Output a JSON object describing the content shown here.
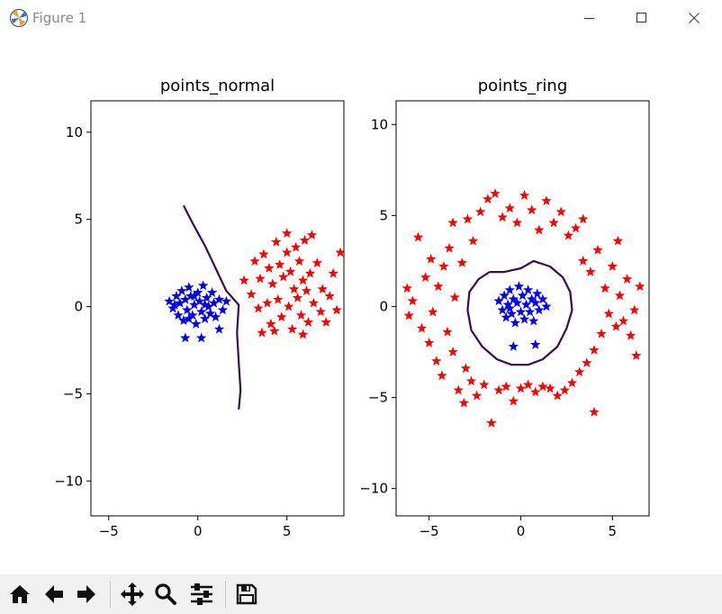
{
  "window": {
    "title": "Figure 1",
    "icons": {
      "app": "matplotlib-logo-icon",
      "minimize": "minimize-icon",
      "maximize": "maximize-icon",
      "close": "close-icon"
    }
  },
  "toolbar": {
    "buttons": [
      {
        "icon": "home-icon"
      },
      {
        "icon": "back-arrow-icon"
      },
      {
        "icon": "forward-arrow-icon"
      },
      {
        "icon": "pan-icon"
      },
      {
        "icon": "zoom-icon"
      },
      {
        "icon": "configure-subplots-icon"
      },
      {
        "icon": "save-icon"
      }
    ]
  },
  "colors": {
    "class_a": "#0000ff",
    "class_b": "#ff0000",
    "boundary": "#3b0a52"
  },
  "chart_data": [
    {
      "type": "scatter",
      "title": "points_normal",
      "xlim": [
        -6,
        8.2
      ],
      "ylim": [
        -12,
        11.8
      ],
      "xticks": [
        -5,
        0,
        5
      ],
      "yticks": [
        -10,
        -5,
        0,
        5,
        10
      ],
      "series": [
        {
          "color": "#0000ff",
          "marker": "star",
          "points": [
            [
              -1.6,
              0.3
            ],
            [
              -1.4,
              -0.1
            ],
            [
              -1.2,
              0.6
            ],
            [
              -1.1,
              -0.5
            ],
            [
              -1.0,
              0.2
            ],
            [
              -0.9,
              0.9
            ],
            [
              -0.8,
              -0.8
            ],
            [
              -0.7,
              0.4
            ],
            [
              -0.6,
              -0.2
            ],
            [
              -0.5,
              1.1
            ],
            [
              -0.4,
              0.6
            ],
            [
              -0.3,
              -0.5
            ],
            [
              -0.2,
              0.1
            ],
            [
              -0.1,
              -1.0
            ],
            [
              0.0,
              0.8
            ],
            [
              0.1,
              0.3
            ],
            [
              0.2,
              -0.3
            ],
            [
              0.3,
              1.2
            ],
            [
              0.4,
              -0.7
            ],
            [
              0.5,
              0.5
            ],
            [
              0.6,
              0.0
            ],
            [
              0.7,
              -0.4
            ],
            [
              0.8,
              0.8
            ],
            [
              0.9,
              0.2
            ],
            [
              1.0,
              -0.6
            ],
            [
              1.2,
              0.4
            ],
            [
              1.4,
              -0.2
            ],
            [
              1.6,
              0.3
            ],
            [
              -0.7,
              -1.8
            ],
            [
              0.2,
              -1.8
            ],
            [
              1.2,
              -1.3
            ],
            [
              -1.3,
              0.1
            ],
            [
              -0.2,
              0.6
            ],
            [
              0.4,
              0.1
            ],
            [
              -0.5,
              -0.7
            ]
          ]
        },
        {
          "color": "#ff0000",
          "marker": "star",
          "points": [
            [
              2.6,
              1.5
            ],
            [
              3.0,
              0.7
            ],
            [
              3.2,
              2.6
            ],
            [
              3.4,
              -0.1
            ],
            [
              3.5,
              1.6
            ],
            [
              3.7,
              3.0
            ],
            [
              3.9,
              0.2
            ],
            [
              4.0,
              2.2
            ],
            [
              4.1,
              -1.0
            ],
            [
              4.2,
              1.3
            ],
            [
              4.4,
              3.7
            ],
            [
              4.5,
              0.4
            ],
            [
              4.6,
              2.4
            ],
            [
              4.7,
              -0.6
            ],
            [
              4.8,
              1.7
            ],
            [
              5.0,
              3.1
            ],
            [
              5.1,
              0.0
            ],
            [
              5.2,
              2.0
            ],
            [
              5.3,
              -1.3
            ],
            [
              5.4,
              1.0
            ],
            [
              5.5,
              3.4
            ],
            [
              5.6,
              0.5
            ],
            [
              5.7,
              2.6
            ],
            [
              5.8,
              -0.5
            ],
            [
              5.9,
              1.5
            ],
            [
              6.0,
              3.8
            ],
            [
              6.1,
              0.9
            ],
            [
              6.2,
              -0.9
            ],
            [
              6.3,
              1.9
            ],
            [
              6.5,
              0.2
            ],
            [
              6.7,
              2.5
            ],
            [
              6.9,
              -0.3
            ],
            [
              7.0,
              1.0
            ],
            [
              7.2,
              -0.9
            ],
            [
              7.4,
              0.6
            ],
            [
              7.6,
              1.9
            ],
            [
              8.0,
              3.1
            ],
            [
              7.8,
              -0.2
            ],
            [
              6.4,
              4.1
            ],
            [
              4.3,
              -1.4
            ],
            [
              3.6,
              -1.5
            ],
            [
              5.0,
              4.2
            ],
            [
              5.9,
              -1.6
            ]
          ]
        }
      ],
      "boundary": [
        [
          -0.8,
          5.8
        ],
        [
          -0.3,
          4.8
        ],
        [
          0.4,
          3.5
        ],
        [
          1.0,
          2.2
        ],
        [
          1.6,
          0.9
        ],
        [
          2.3,
          0.1
        ],
        [
          2.2,
          -1.5
        ],
        [
          2.3,
          -3.2
        ],
        [
          2.4,
          -4.8
        ],
        [
          2.3,
          -5.9
        ]
      ]
    },
    {
      "type": "scatter",
      "title": "points_ring",
      "xlim": [
        -6.8,
        7.0
      ],
      "ylim": [
        -11.5,
        11.3
      ],
      "xticks": [
        -5,
        0,
        5
      ],
      "yticks": [
        -10,
        -5,
        0,
        5,
        10
      ],
      "series": [
        {
          "color": "#0000ff",
          "marker": "star",
          "points": [
            [
              -1.2,
              0.3
            ],
            [
              -1.0,
              -0.2
            ],
            [
              -0.9,
              0.6
            ],
            [
              -0.8,
              -0.6
            ],
            [
              -0.7,
              0.1
            ],
            [
              -0.6,
              0.9
            ],
            [
              -0.5,
              -0.4
            ],
            [
              -0.4,
              0.4
            ],
            [
              -0.3,
              -0.9
            ],
            [
              -0.2,
              0.2
            ],
            [
              -0.1,
              1.1
            ],
            [
              0.0,
              -0.3
            ],
            [
              0.1,
              0.6
            ],
            [
              0.2,
              -0.7
            ],
            [
              0.3,
              0.1
            ],
            [
              0.4,
              0.9
            ],
            [
              0.5,
              -0.3
            ],
            [
              0.6,
              0.4
            ],
            [
              0.7,
              -0.8
            ],
            [
              0.8,
              0.2
            ],
            [
              0.9,
              0.7
            ],
            [
              1.0,
              -0.2
            ],
            [
              1.2,
              0.4
            ],
            [
              1.4,
              0.0
            ],
            [
              -0.4,
              -2.2
            ],
            [
              0.8,
              -2.1
            ],
            [
              -0.6,
              -0.1
            ]
          ]
        },
        {
          "color": "#ff0000",
          "marker": "star",
          "points": [
            [
              -6.2,
              1.0
            ],
            [
              -6.1,
              -0.5
            ],
            [
              -5.9,
              0.3
            ],
            [
              -5.6,
              3.8
            ],
            [
              -5.4,
              -1.2
            ],
            [
              -5.2,
              1.6
            ],
            [
              -5.0,
              -2.0
            ],
            [
              -4.9,
              2.6
            ],
            [
              -4.8,
              -0.3
            ],
            [
              -4.6,
              -3.0
            ],
            [
              -4.5,
              1.1
            ],
            [
              -4.3,
              -3.8
            ],
            [
              -4.2,
              2.2
            ],
            [
              -4.0,
              -1.4
            ],
            [
              -3.9,
              3.2
            ],
            [
              -3.7,
              -2.5
            ],
            [
              -3.6,
              0.5
            ],
            [
              -3.4,
              -4.6
            ],
            [
              -3.2,
              2.4
            ],
            [
              -3.0,
              -3.4
            ],
            [
              -2.9,
              4.8
            ],
            [
              -2.7,
              -4.1
            ],
            [
              -2.6,
              3.6
            ],
            [
              -2.4,
              -4.9
            ],
            [
              -2.2,
              5.2
            ],
            [
              -2.0,
              -4.3
            ],
            [
              -1.8,
              5.9
            ],
            [
              -1.6,
              -6.4
            ],
            [
              -1.4,
              6.2
            ],
            [
              -1.2,
              -4.6
            ],
            [
              -1.0,
              4.9
            ],
            [
              -0.8,
              -4.4
            ],
            [
              -0.6,
              5.4
            ],
            [
              -0.4,
              -5.2
            ],
            [
              -0.2,
              4.6
            ],
            [
              0.0,
              -4.5
            ],
            [
              0.2,
              6.1
            ],
            [
              0.4,
              -4.3
            ],
            [
              0.6,
              5.3
            ],
            [
              0.8,
              -4.7
            ],
            [
              1.0,
              4.2
            ],
            [
              1.2,
              -4.4
            ],
            [
              1.4,
              5.8
            ],
            [
              1.6,
              -4.5
            ],
            [
              1.8,
              4.6
            ],
            [
              2.0,
              -4.9
            ],
            [
              2.2,
              5.2
            ],
            [
              2.4,
              -4.6
            ],
            [
              2.6,
              3.9
            ],
            [
              2.8,
              -4.2
            ],
            [
              3.0,
              4.3
            ],
            [
              3.2,
              -3.6
            ],
            [
              3.4,
              2.5
            ],
            [
              3.6,
              -3.1
            ],
            [
              3.8,
              1.9
            ],
            [
              4.0,
              -2.4
            ],
            [
              4.2,
              3.1
            ],
            [
              4.4,
              -1.5
            ],
            [
              4.6,
              1.0
            ],
            [
              4.8,
              -0.4
            ],
            [
              5.0,
              2.2
            ],
            [
              5.2,
              -1.1
            ],
            [
              5.4,
              0.6
            ],
            [
              5.6,
              -0.8
            ],
            [
              5.8,
              1.5
            ],
            [
              6.0,
              -1.6
            ],
            [
              6.2,
              -0.2
            ],
            [
              6.5,
              1.1
            ],
            [
              6.3,
              -2.7
            ],
            [
              5.3,
              3.6
            ],
            [
              4.0,
              -5.8
            ],
            [
              -3.1,
              -5.3
            ],
            [
              -3.7,
              4.6
            ],
            [
              3.4,
              4.8
            ]
          ]
        }
      ],
      "boundary": [
        [
          -1.7,
          1.9
        ],
        [
          -0.9,
          1.9
        ],
        [
          0.0,
          2.1
        ],
        [
          0.7,
          2.5
        ],
        [
          1.6,
          2.2
        ],
        [
          2.3,
          1.6
        ],
        [
          2.7,
          0.8
        ],
        [
          2.8,
          -0.2
        ],
        [
          2.5,
          -1.2
        ],
        [
          2.0,
          -2.2
        ],
        [
          1.2,
          -2.9
        ],
        [
          0.4,
          -3.2
        ],
        [
          -0.5,
          -3.2
        ],
        [
          -1.3,
          -2.9
        ],
        [
          -2.1,
          -2.2
        ],
        [
          -2.7,
          -1.3
        ],
        [
          -2.9,
          -0.2
        ],
        [
          -2.8,
          0.8
        ],
        [
          -2.3,
          1.5
        ],
        [
          -1.7,
          1.9
        ]
      ]
    }
  ]
}
